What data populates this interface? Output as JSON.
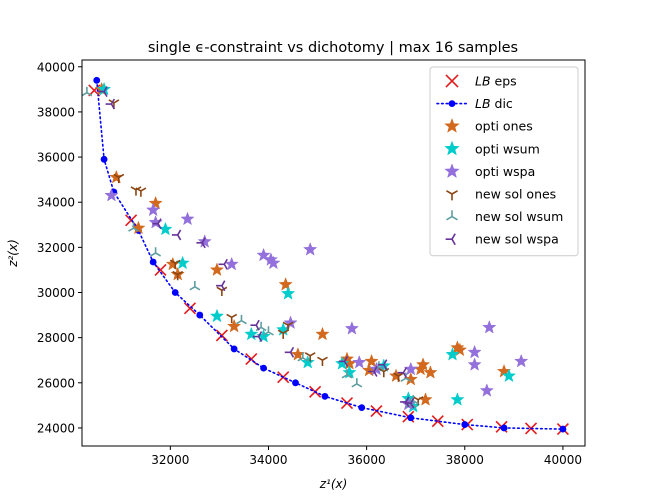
{
  "chart_data": {
    "type": "scatter",
    "title": "single ϵ-constraint vs dichotomy | max 16 samples",
    "xlabel": "z¹(x)",
    "ylabel": "z²(x)",
    "xlim": [
      30200,
      40450
    ],
    "ylim": [
      23200,
      40300
    ],
    "xticks": [
      32000,
      34000,
      36000,
      38000,
      40000
    ],
    "yticks": [
      24000,
      26000,
      28000,
      30000,
      32000,
      34000,
      36000,
      38000,
      40000
    ],
    "grid": false,
    "legend_position": "top-right",
    "series": [
      {
        "name": "LB eps",
        "marker": "x",
        "color": "#e41a1c",
        "line": "none",
        "points": [
          [
            30450,
            38950
          ],
          [
            31200,
            33200
          ],
          [
            31800,
            31000
          ],
          [
            32400,
            29300
          ],
          [
            33050,
            28100
          ],
          [
            33650,
            27050
          ],
          [
            34300,
            26250
          ],
          [
            34950,
            25600
          ],
          [
            35600,
            25100
          ],
          [
            36200,
            24750
          ],
          [
            36850,
            24500
          ],
          [
            37450,
            24300
          ],
          [
            38050,
            24150
          ],
          [
            38750,
            24050
          ],
          [
            39350,
            23980
          ],
          [
            40000,
            23950
          ]
        ]
      },
      {
        "name": "LB dic",
        "marker": "dot",
        "color": "#0000ff",
        "line": "dotted",
        "points": [
          [
            30500,
            39400
          ],
          [
            30650,
            35900
          ],
          [
            30850,
            34450
          ],
          [
            31350,
            32750
          ],
          [
            31650,
            31350
          ],
          [
            32100,
            30000
          ],
          [
            32600,
            29000
          ],
          [
            33300,
            27500
          ],
          [
            33900,
            26650
          ],
          [
            34550,
            26000
          ],
          [
            35150,
            25400
          ],
          [
            35900,
            24900
          ],
          [
            36900,
            24450
          ],
          [
            38000,
            24150
          ],
          [
            38800,
            24000
          ],
          [
            40000,
            23950
          ]
        ]
      },
      {
        "name": "opti ones",
        "marker": "star",
        "color": "#d2691e",
        "line": "none",
        "points": [
          [
            30600,
            39000
          ],
          [
            30900,
            35100
          ],
          [
            31350,
            32850
          ],
          [
            31700,
            33950
          ],
          [
            32050,
            31250
          ],
          [
            32150,
            30800
          ],
          [
            32950,
            31000
          ],
          [
            33300,
            28500
          ],
          [
            34350,
            30350
          ],
          [
            34600,
            27250
          ],
          [
            35100,
            28150
          ],
          [
            35600,
            27050
          ],
          [
            35650,
            26850
          ],
          [
            36050,
            26550
          ],
          [
            36100,
            26950
          ],
          [
            36600,
            26300
          ],
          [
            36900,
            26150
          ],
          [
            37100,
            26600
          ],
          [
            37150,
            26800
          ],
          [
            37300,
            26450
          ],
          [
            37200,
            25250
          ],
          [
            37850,
            27550
          ],
          [
            37900,
            27450
          ],
          [
            38800,
            26500
          ]
        ]
      },
      {
        "name": "opti wsum",
        "marker": "star",
        "color": "#00cccc",
        "line": "none",
        "points": [
          [
            30650,
            39000
          ],
          [
            31900,
            32800
          ],
          [
            32250,
            31300
          ],
          [
            32950,
            28950
          ],
          [
            33650,
            28150
          ],
          [
            33900,
            28050
          ],
          [
            34300,
            28350
          ],
          [
            34400,
            29950
          ],
          [
            34800,
            26900
          ],
          [
            35500,
            26850
          ],
          [
            35650,
            26450
          ],
          [
            36350,
            26750
          ],
          [
            36850,
            25300
          ],
          [
            36950,
            24950
          ],
          [
            37750,
            27250
          ],
          [
            37850,
            25250
          ],
          [
            38900,
            26300
          ]
        ]
      },
      {
        "name": "opti wspa",
        "marker": "star",
        "color": "#9370db",
        "line": "none",
        "points": [
          [
            30800,
            34300
          ],
          [
            31650,
            33650
          ],
          [
            31700,
            33100
          ],
          [
            32350,
            33250
          ],
          [
            32700,
            32250
          ],
          [
            33250,
            31250
          ],
          [
            33900,
            31650
          ],
          [
            34100,
            31300
          ],
          [
            34050,
            31450
          ],
          [
            34450,
            28650
          ],
          [
            34850,
            31900
          ],
          [
            35700,
            28400
          ],
          [
            35850,
            26900
          ],
          [
            36200,
            26600
          ],
          [
            36900,
            26600
          ],
          [
            38200,
            27350
          ],
          [
            38500,
            28450
          ],
          [
            38200,
            26800
          ],
          [
            38450,
            25650
          ],
          [
            39150,
            26950
          ],
          [
            36850,
            25050
          ]
        ]
      },
      {
        "name": "new sol ones",
        "marker": "tri_down",
        "color": "#8b4513",
        "line": "none",
        "points": [
          [
            30850,
            38400
          ],
          [
            30950,
            35100
          ],
          [
            31300,
            34550
          ],
          [
            31400,
            34500
          ],
          [
            32100,
            31300
          ],
          [
            32150,
            30800
          ],
          [
            33050,
            30100
          ],
          [
            33250,
            28900
          ],
          [
            34300,
            28200
          ],
          [
            34400,
            28550
          ],
          [
            34850,
            27200
          ],
          [
            35100,
            27000
          ],
          [
            36350,
            26500
          ],
          [
            36650,
            26300
          ],
          [
            37050,
            25250
          ]
        ]
      },
      {
        "name": "new sol wsum",
        "marker": "tri_up",
        "color": "#5f9ea0",
        "line": "none",
        "points": [
          [
            30300,
            38850
          ],
          [
            31250,
            32850
          ],
          [
            31700,
            31750
          ],
          [
            32500,
            30250
          ],
          [
            33450,
            28750
          ],
          [
            33850,
            28450
          ],
          [
            34000,
            28250
          ],
          [
            34700,
            27100
          ],
          [
            35600,
            26350
          ],
          [
            35800,
            25950
          ],
          [
            36250,
            26700
          ],
          [
            36800,
            26200
          ],
          [
            36900,
            25050
          ],
          [
            36950,
            25200
          ]
        ]
      },
      {
        "name": "new sol wspa",
        "marker": "tri_left",
        "color": "#663399",
        "line": "none",
        "points": [
          [
            30650,
            38900
          ],
          [
            30800,
            38350
          ],
          [
            31750,
            33050
          ],
          [
            32150,
            32550
          ],
          [
            32650,
            32200
          ],
          [
            33100,
            31250
          ],
          [
            33050,
            30300
          ],
          [
            33750,
            28550
          ],
          [
            33800,
            28050
          ],
          [
            34450,
            27350
          ],
          [
            35550,
            26950
          ],
          [
            36150,
            26500
          ],
          [
            36350,
            26800
          ],
          [
            36750,
            26450
          ],
          [
            36800,
            25150
          ],
          [
            36900,
            25100
          ]
        ]
      }
    ]
  }
}
